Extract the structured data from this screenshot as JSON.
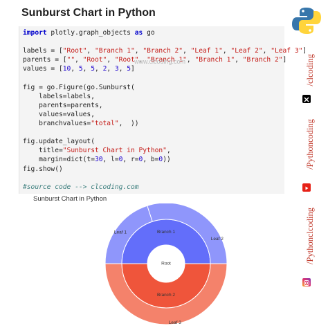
{
  "page": {
    "title": "Sunburst Chart in Python"
  },
  "code": {
    "lines": [
      {
        "tokens": [
          {
            "t": "import",
            "c": "kw"
          },
          {
            "t": " plotly.graph_objects "
          },
          {
            "t": "as",
            "c": "kw"
          },
          {
            "t": " go"
          }
        ]
      },
      {
        "tokens": []
      },
      {
        "tokens": [
          {
            "t": "labels = ["
          },
          {
            "t": "\"Root\"",
            "c": "str"
          },
          {
            "t": ", "
          },
          {
            "t": "\"Branch 1\"",
            "c": "str"
          },
          {
            "t": ", "
          },
          {
            "t": "\"Branch 2\"",
            "c": "str"
          },
          {
            "t": ", "
          },
          {
            "t": "\"Leaf 1\"",
            "c": "str"
          },
          {
            "t": ", "
          },
          {
            "t": "\"Leaf 2\"",
            "c": "str"
          },
          {
            "t": ", "
          },
          {
            "t": "\"Leaf 3\"",
            "c": "str"
          },
          {
            "t": "]"
          }
        ]
      },
      {
        "tokens": [
          {
            "t": "parents = ["
          },
          {
            "t": "\"\"",
            "c": "str"
          },
          {
            "t": ", "
          },
          {
            "t": "\"Root\"",
            "c": "str"
          },
          {
            "t": ", "
          },
          {
            "t": "\"Root\"",
            "c": "str"
          },
          {
            "t": ", "
          },
          {
            "t": "\"Branch 1\"",
            "c": "str"
          },
          {
            "t": ", "
          },
          {
            "t": "\"Branch 1\"",
            "c": "str"
          },
          {
            "t": ", "
          },
          {
            "t": "\"Branch 2\"",
            "c": "str"
          },
          {
            "t": "]"
          }
        ]
      },
      {
        "tokens": [
          {
            "t": "values = ["
          },
          {
            "t": "10",
            "c": "num"
          },
          {
            "t": ", "
          },
          {
            "t": "5",
            "c": "num"
          },
          {
            "t": ", "
          },
          {
            "t": "5",
            "c": "num"
          },
          {
            "t": ", "
          },
          {
            "t": "2",
            "c": "num"
          },
          {
            "t": ", "
          },
          {
            "t": "3",
            "c": "num"
          },
          {
            "t": ", "
          },
          {
            "t": "5",
            "c": "num"
          },
          {
            "t": "]"
          }
        ]
      },
      {
        "tokens": []
      },
      {
        "tokens": [
          {
            "t": "fig = go.Figure(go.Sunburst("
          }
        ]
      },
      {
        "tokens": [
          {
            "t": "    labels=labels,"
          }
        ]
      },
      {
        "tokens": [
          {
            "t": "    parents=parents,"
          }
        ]
      },
      {
        "tokens": [
          {
            "t": "    values=values,"
          }
        ]
      },
      {
        "tokens": [
          {
            "t": "    branchvalues="
          },
          {
            "t": "\"total\"",
            "c": "str"
          },
          {
            "t": ",  ))"
          }
        ]
      },
      {
        "tokens": []
      },
      {
        "tokens": [
          {
            "t": "fig.update_layout("
          }
        ]
      },
      {
        "tokens": [
          {
            "t": "    title="
          },
          {
            "t": "\"Sunburst Chart in Python\"",
            "c": "str"
          },
          {
            "t": ","
          }
        ]
      },
      {
        "tokens": [
          {
            "t": "    margin=dict(t="
          },
          {
            "t": "30",
            "c": "num"
          },
          {
            "t": ", l="
          },
          {
            "t": "0",
            "c": "num"
          },
          {
            "t": ", r="
          },
          {
            "t": "0",
            "c": "num"
          },
          {
            "t": ", b="
          },
          {
            "t": "0",
            "c": "num"
          },
          {
            "t": "))"
          }
        ]
      },
      {
        "tokens": [
          {
            "t": "fig.show()"
          }
        ]
      },
      {
        "tokens": []
      },
      {
        "tokens": [
          {
            "t": "#source code --> clcoding.com",
            "c": "cm"
          }
        ]
      }
    ],
    "ghost_text": "www.clcoding.com"
  },
  "sunburst": {
    "caption": "Sunburst Chart in Python",
    "root_label": "Root",
    "nodes": [
      {
        "label": "Branch 1",
        "parent": "Root",
        "value": 5,
        "ring": 1,
        "color": "#636efa"
      },
      {
        "label": "Branch 2",
        "parent": "Root",
        "value": 5,
        "ring": 1,
        "color": "#ef553b"
      },
      {
        "label": "Leaf 1",
        "parent": "Branch 1",
        "value": 2,
        "ring": 2,
        "color": "#8f96fb"
      },
      {
        "label": "Leaf 2",
        "parent": "Branch 1",
        "value": 3,
        "ring": 2,
        "color": "#8f96fb"
      },
      {
        "label": "Leaf 3",
        "parent": "Branch 2",
        "value": 5,
        "ring": 2,
        "color": "#f4826b"
      }
    ],
    "root_value": 10
  },
  "sidebar": {
    "handle_1": "/clcoding",
    "handle_2": "/Pythoncoding",
    "handle_3": "/Pythonclcoding",
    "icons": [
      "python-logo-icon",
      "x-icon",
      "youtube-icon",
      "instagram-icon"
    ]
  }
}
